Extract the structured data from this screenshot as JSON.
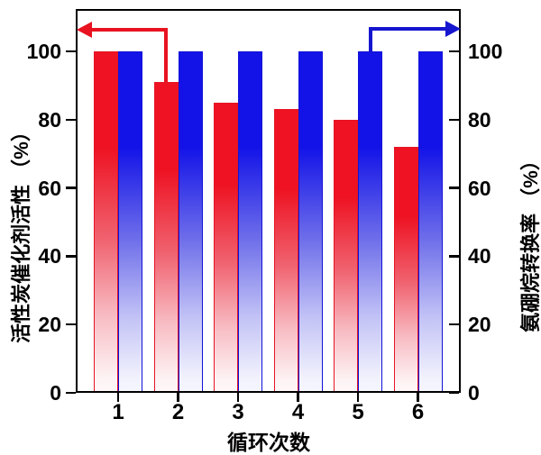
{
  "figure": {
    "background": "#ffffff",
    "frame_color": "#000000"
  },
  "chart_data": {
    "type": "bar",
    "title": "",
    "categories": [
      "1",
      "2",
      "3",
      "4",
      "5",
      "6"
    ],
    "series": [
      {
        "name": "活性炭催化剂活性",
        "axis": "left",
        "color": "#ee1222",
        "gradient_to": "#fef7f8",
        "values": [
          100,
          91,
          85,
          83,
          80,
          72
        ]
      },
      {
        "name": "氨硼烷转换率",
        "axis": "right",
        "color": "#1313e8",
        "gradient_to": "#f6f6fe",
        "values": [
          100,
          100,
          100,
          100,
          100,
          100
        ]
      }
    ],
    "xlabel": "循环次数",
    "ylabel_left": "活性炭催化剂活性 （%）",
    "ylabel_right": "氨硼烷转换率 （%）",
    "yticks": [
      "0",
      "20",
      "40",
      "60",
      "80",
      "100"
    ],
    "ytick_values": [
      0,
      20,
      40,
      60,
      80,
      100
    ],
    "ylim": [
      0,
      112
    ],
    "grid": "off",
    "legend": "none",
    "annotations": [
      {
        "type": "elbow-arrow",
        "color": "#e81220",
        "points_to_axis": "left",
        "series": "活性炭催化剂活性",
        "category": "2",
        "direction": "left"
      },
      {
        "type": "elbow-arrow",
        "color": "#1616cf",
        "points_to_axis": "right",
        "series": "氨硼烷转换率",
        "category": "5",
        "direction": "right"
      }
    ]
  }
}
